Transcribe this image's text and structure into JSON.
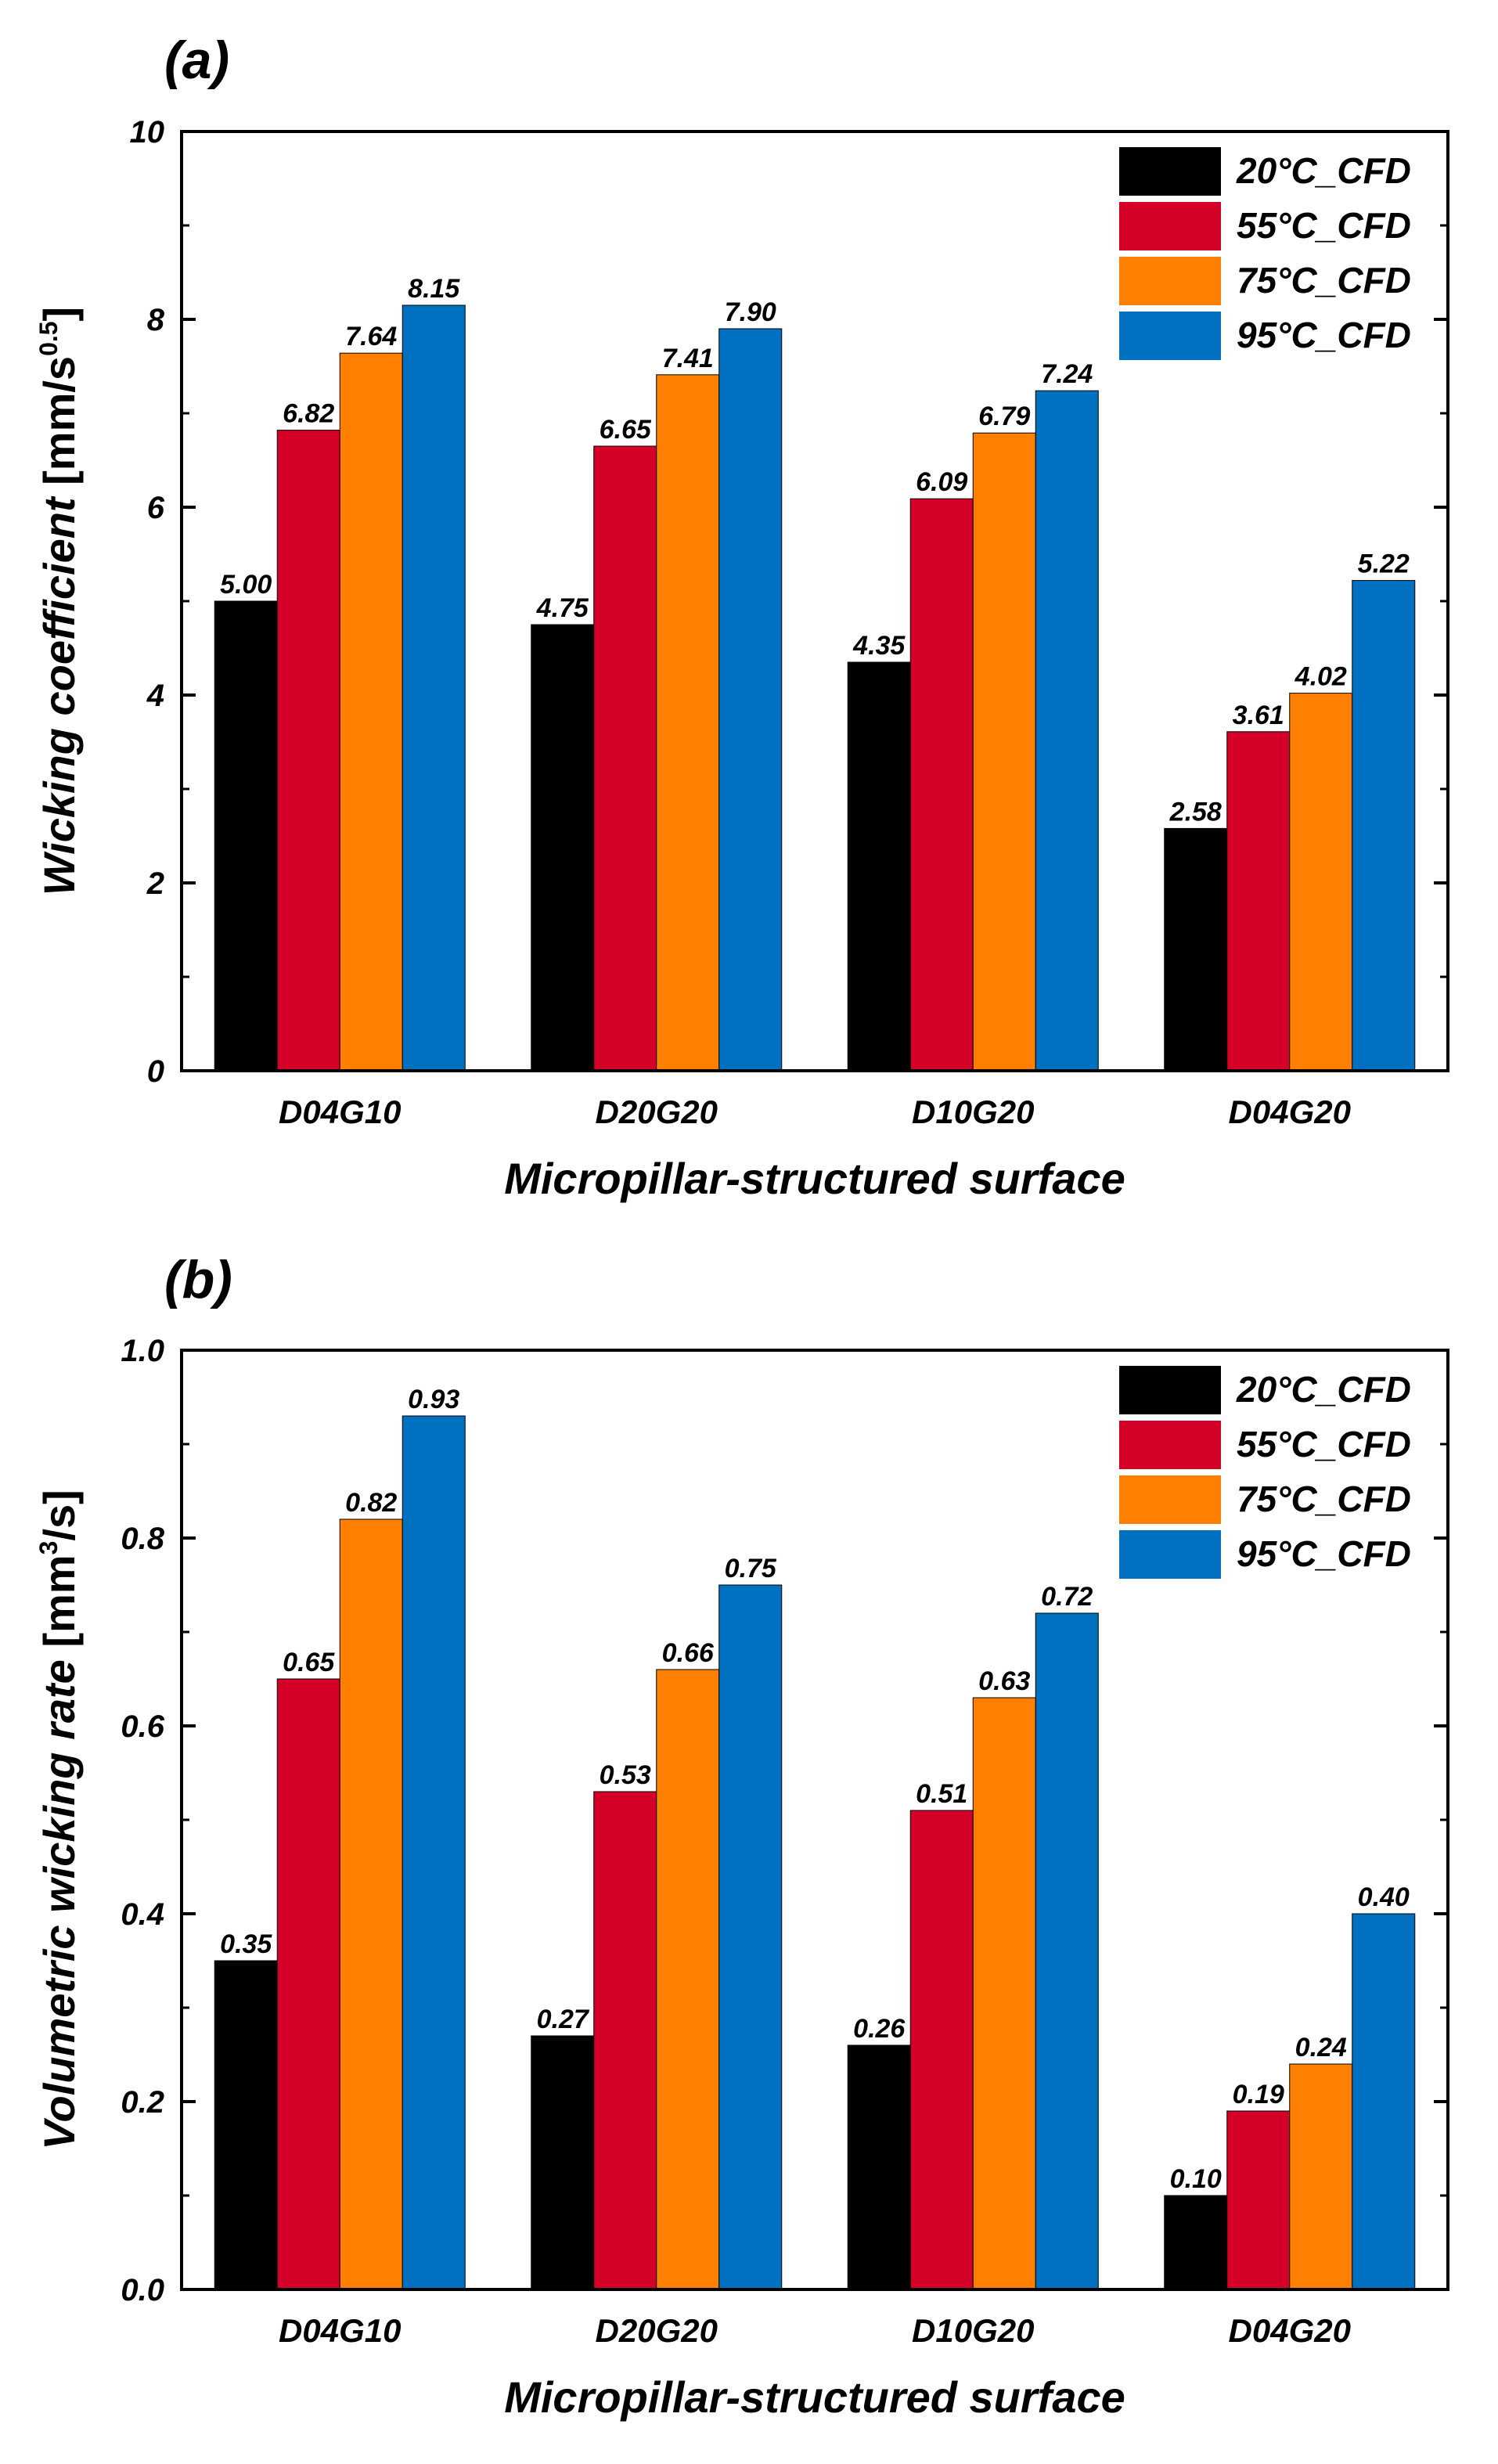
{
  "chart_data": [
    {
      "type": "bar",
      "panel_label": "(a)",
      "categories": [
        "D04G10",
        "D20G20",
        "D10G20",
        "D04G20"
      ],
      "series": [
        {
          "name": "20°C_CFD",
          "color": "#000000",
          "values": [
            5.0,
            4.75,
            4.35,
            2.58
          ],
          "labels": [
            "5.00",
            "4.75",
            "4.35",
            "2.58"
          ]
        },
        {
          "name": "55°C_CFD",
          "color": "#d40027",
          "values": [
            6.82,
            6.65,
            6.09,
            3.61
          ],
          "labels": [
            "6.82",
            "6.65",
            "6.09",
            "3.61"
          ]
        },
        {
          "name": "75°C_CFD",
          "color": "#ff8000",
          "values": [
            7.64,
            7.41,
            6.79,
            4.02
          ],
          "labels": [
            "7.64",
            "7.41",
            "6.79",
            "4.02"
          ]
        },
        {
          "name": "95°C_CFD",
          "color": "#0070c0",
          "values": [
            8.15,
            7.9,
            7.24,
            5.22
          ],
          "labels": [
            "8.15",
            "7.90",
            "7.24",
            "5.22"
          ]
        }
      ],
      "xlabel": "Micropillar-structured surface",
      "ylabel": {
        "main": "Wicking coefficient",
        "unit_pre": " [mm/s",
        "unit_sup": "0.5",
        "unit_post": "]"
      },
      "ylim": [
        0,
        10
      ],
      "yticks": [
        "0",
        "2",
        "4",
        "6",
        "8",
        "10"
      ],
      "legend_position": "top-right"
    },
    {
      "type": "bar",
      "panel_label": "(b)",
      "categories": [
        "D04G10",
        "D20G20",
        "D10G20",
        "D04G20"
      ],
      "series": [
        {
          "name": "20°C_CFD",
          "color": "#000000",
          "values": [
            0.35,
            0.27,
            0.26,
            0.1
          ],
          "labels": [
            "0.35",
            "0.27",
            "0.26",
            "0.10"
          ]
        },
        {
          "name": "55°C_CFD",
          "color": "#d40027",
          "values": [
            0.65,
            0.53,
            0.51,
            0.19
          ],
          "labels": [
            "0.65",
            "0.53",
            "0.51",
            "0.19"
          ]
        },
        {
          "name": "75°C_CFD",
          "color": "#ff8000",
          "values": [
            0.82,
            0.66,
            0.63,
            0.24
          ],
          "labels": [
            "0.82",
            "0.66",
            "0.63",
            "0.24"
          ]
        },
        {
          "name": "95°C_CFD",
          "color": "#0070c0",
          "values": [
            0.93,
            0.75,
            0.72,
            0.4
          ],
          "labels": [
            "0.93",
            "0.75",
            "0.72",
            "0.40"
          ]
        }
      ],
      "xlabel": "Micropillar-structured surface",
      "ylabel": {
        "main": "Volumetric wicking rate",
        "unit_pre": " [mm",
        "unit_sup": "3",
        "unit_post": "/s]"
      },
      "ylim": [
        0,
        1.0
      ],
      "yticks": [
        "0.0",
        "0.2",
        "0.4",
        "0.6",
        "0.8",
        "1.0"
      ],
      "legend_position": "top-right"
    }
  ]
}
